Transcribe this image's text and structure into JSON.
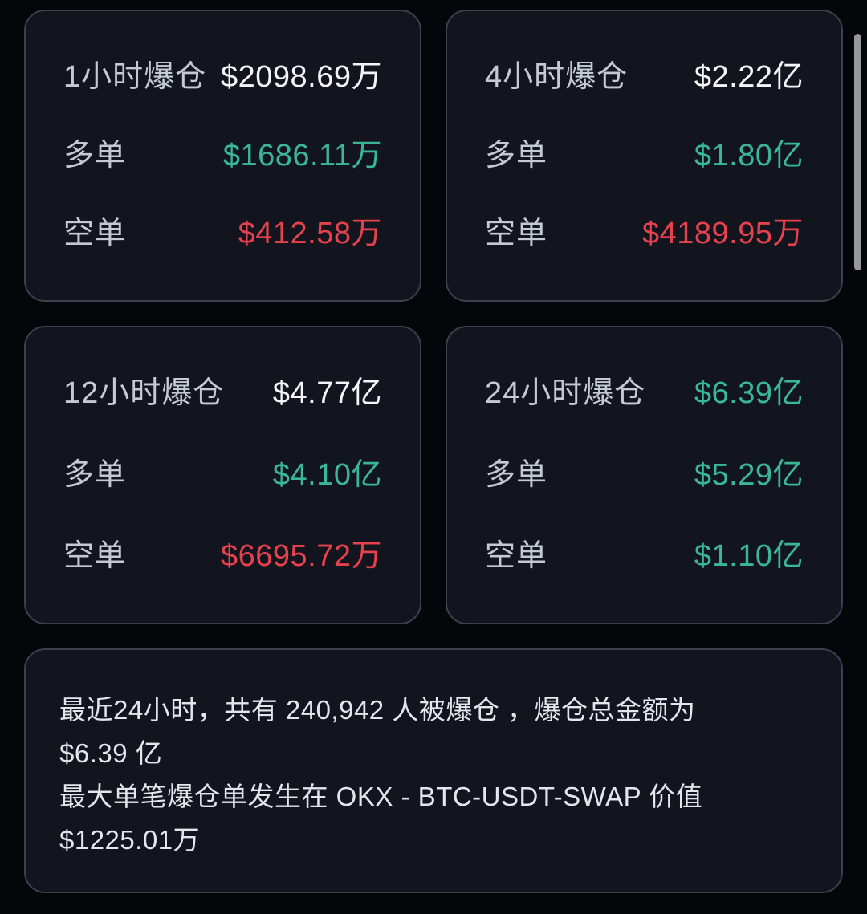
{
  "theme": {
    "page_bg": "#05060a",
    "card_bg": "#12151d",
    "card_border": "#3a404d",
    "label_color": "#c4c9d2",
    "white_value": "#f3f5f8",
    "green": "#3ab795",
    "red": "#e5414f"
  },
  "cards": [
    {
      "title": "1小时爆仓",
      "total": "$2098.69万",
      "total_color": "white",
      "rows": [
        {
          "label": "多单",
          "value": "$1686.11万",
          "color": "green"
        },
        {
          "label": "空单",
          "value": "$412.58万",
          "color": "red"
        }
      ]
    },
    {
      "title": "4小时爆仓",
      "total": "$2.22亿",
      "total_color": "white",
      "rows": [
        {
          "label": "多单",
          "value": "$1.80亿",
          "color": "green"
        },
        {
          "label": "空单",
          "value": "$4189.95万",
          "color": "red"
        }
      ]
    },
    {
      "title": "12小时爆仓",
      "total": "$4.77亿",
      "total_color": "white",
      "rows": [
        {
          "label": "多单",
          "value": "$4.10亿",
          "color": "green"
        },
        {
          "label": "空单",
          "value": "$6695.72万",
          "color": "red"
        }
      ]
    },
    {
      "title": "24小时爆仓",
      "total": "$6.39亿",
      "total_color": "green",
      "rows": [
        {
          "label": "多单",
          "value": "$5.29亿",
          "color": "green"
        },
        {
          "label": "空单",
          "value": "$1.10亿",
          "color": "green"
        }
      ]
    }
  ],
  "summary": {
    "lines": [
      "最近24小时，共有 240,942 人被爆仓 ，爆仓总金额为",
      "$6.39 亿",
      "最大单笔爆仓单发生在 OKX - BTC-USDT-SWAP 价值",
      "$1225.01万"
    ]
  }
}
